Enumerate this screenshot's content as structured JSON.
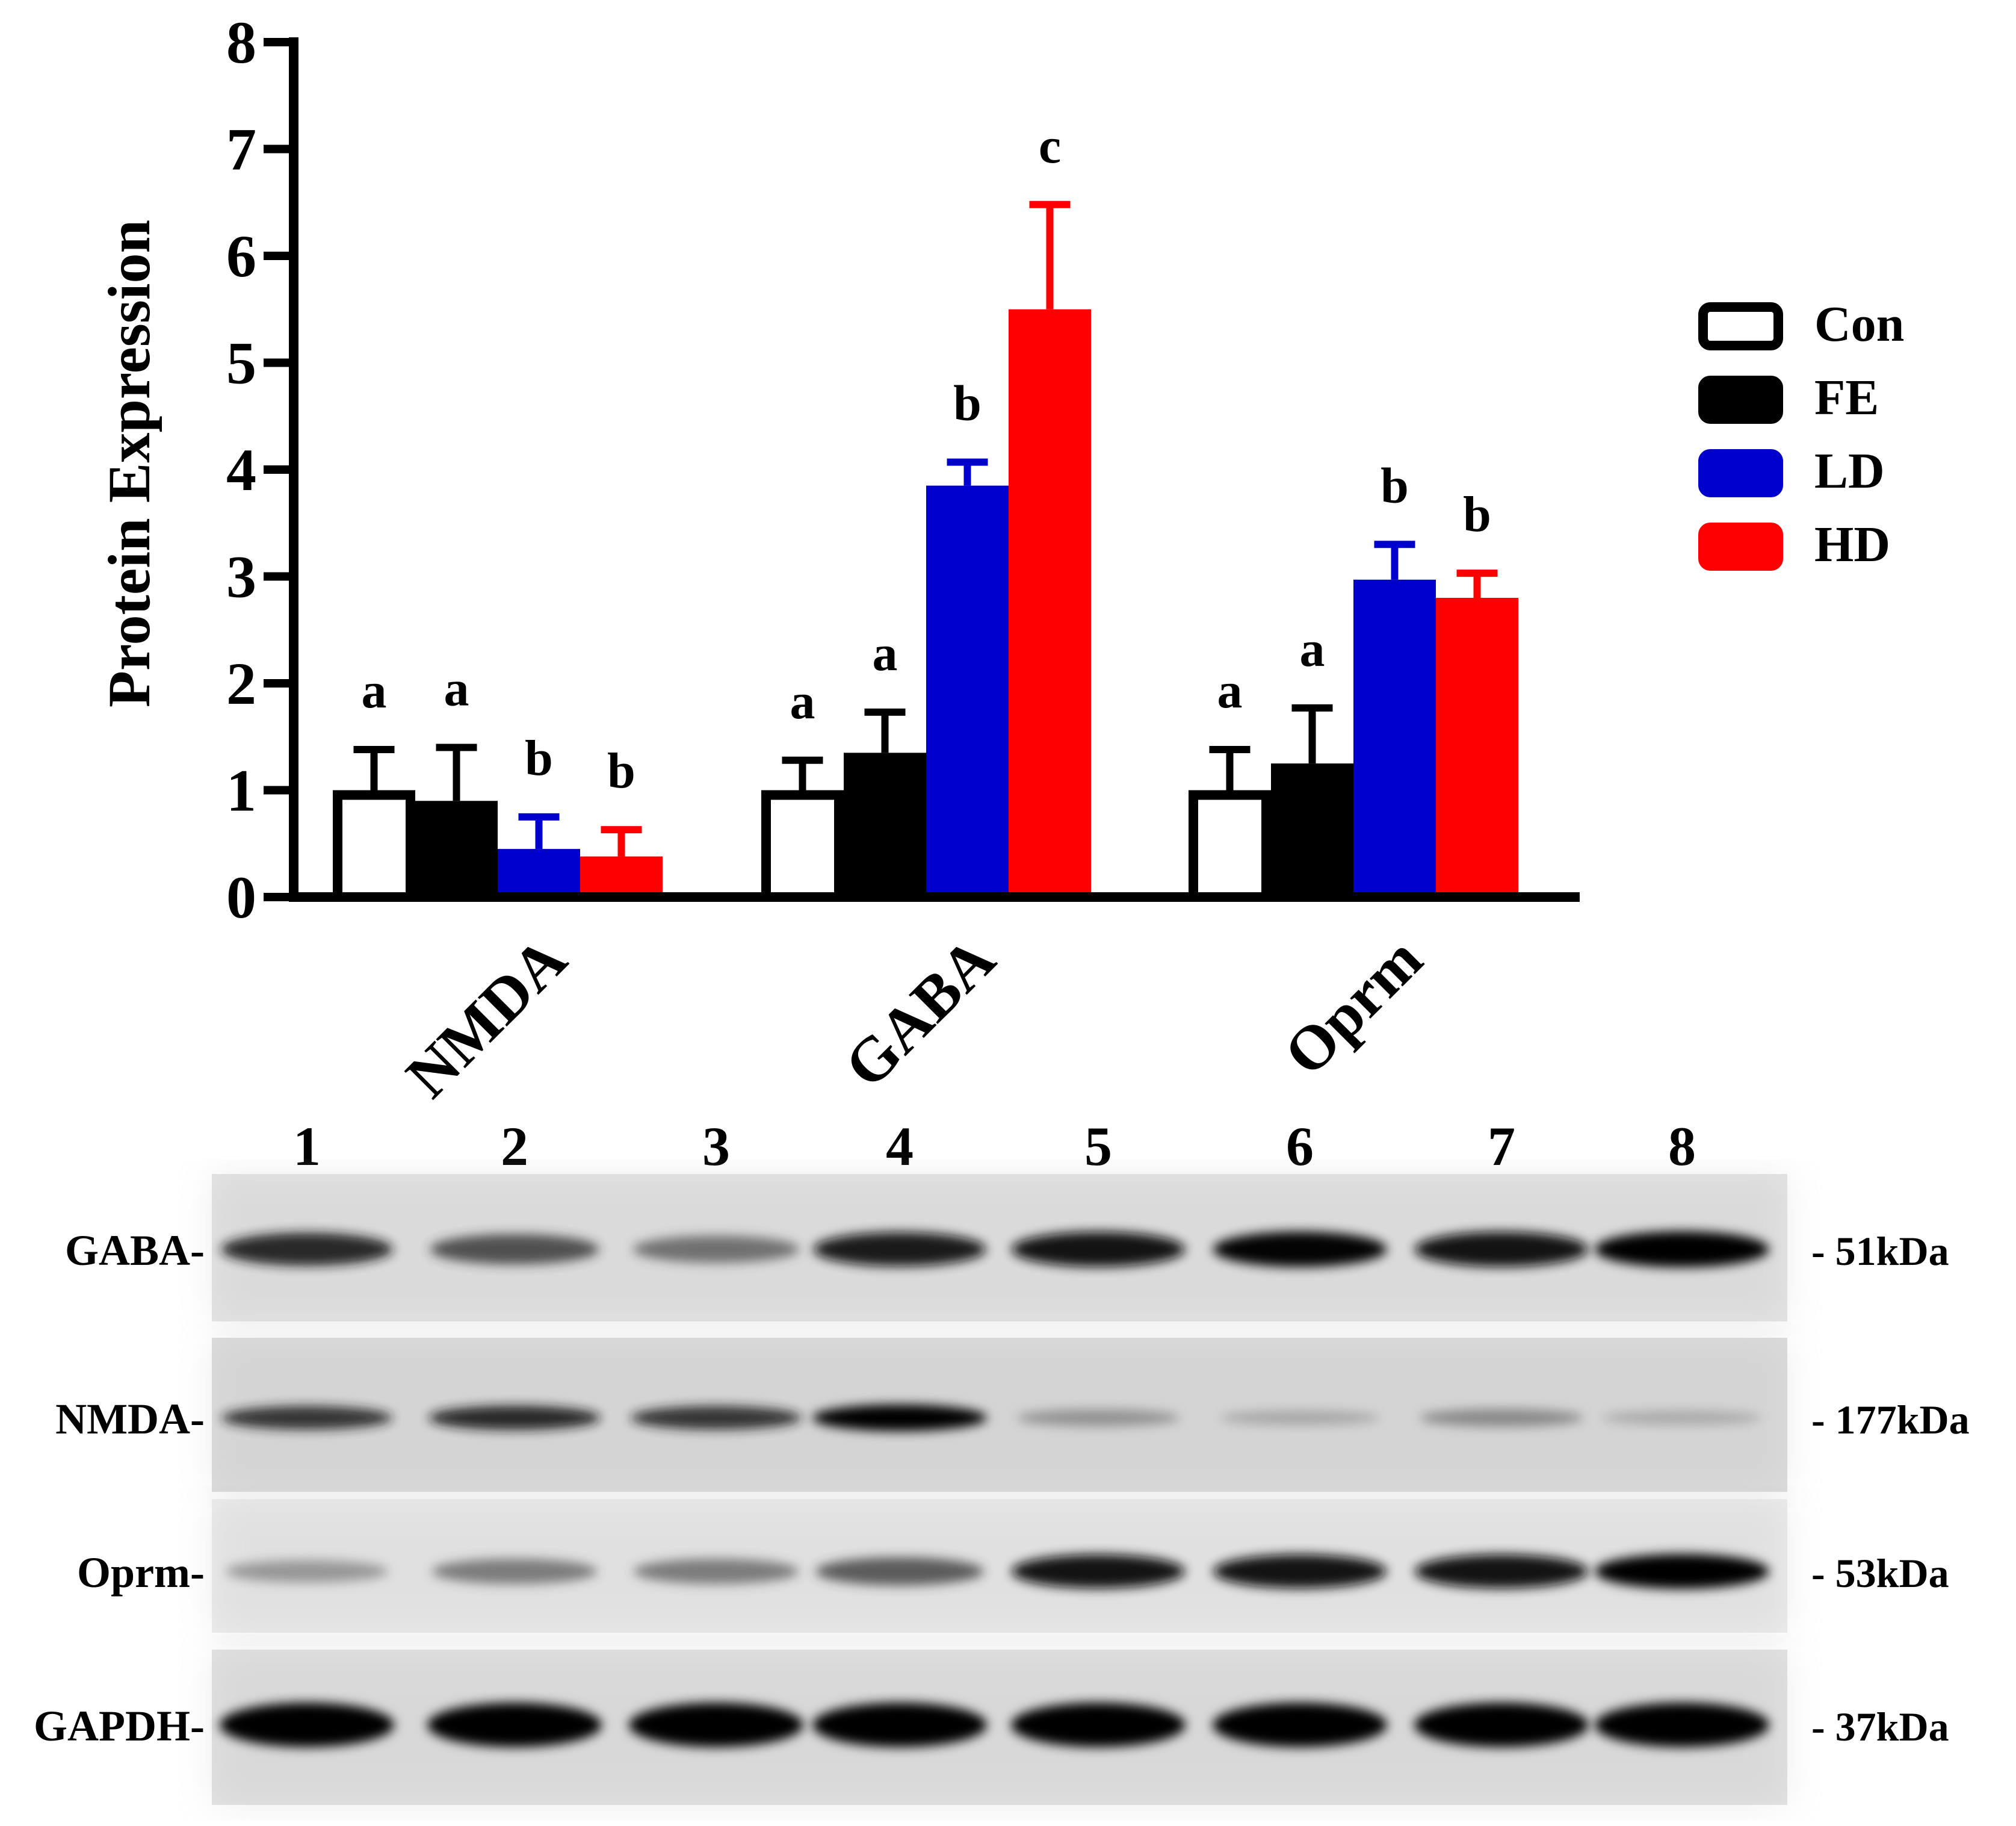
{
  "chart_data": {
    "type": "bar",
    "ylabel": "Protein Expression",
    "ylim": [
      0,
      8
    ],
    "yticks": [
      "0",
      "1",
      "2",
      "3",
      "4",
      "5",
      "6",
      "7",
      "8"
    ],
    "categories": [
      "NMDA",
      "GABA",
      "Oprm"
    ],
    "legend_position": "right",
    "series": [
      {
        "name": "Con",
        "color": "#ffffff",
        "values": [
          1.0,
          1.0,
          1.0
        ],
        "errors": [
          0.38,
          0.28,
          0.38
        ],
        "letters": [
          "a",
          "a",
          "a"
        ]
      },
      {
        "name": "FE",
        "color": "#000000",
        "values": [
          0.9,
          1.35,
          1.25
        ],
        "errors": [
          0.5,
          0.38,
          0.52
        ],
        "letters": [
          "a",
          "a",
          "a"
        ]
      },
      {
        "name": "LD",
        "color": "#0000cc",
        "values": [
          0.45,
          3.85,
          2.97
        ],
        "errors": [
          0.3,
          0.22,
          0.33
        ],
        "letters": [
          "b",
          "b",
          "b"
        ]
      },
      {
        "name": "HD",
        "color": "#ff0000",
        "values": [
          0.38,
          5.5,
          2.8
        ],
        "errors": [
          0.25,
          0.98,
          0.23
        ],
        "letters": [
          "b",
          "c",
          "b"
        ]
      }
    ]
  },
  "blot": {
    "lanes": [
      "1",
      "2",
      "3",
      "4",
      "5",
      "6",
      "7",
      "8"
    ],
    "rows": [
      {
        "label": "GABA-",
        "size": "- 51kDa",
        "intensity": [
          0.85,
          0.7,
          0.55,
          0.9,
          0.95,
          0.97,
          0.95,
          1.0
        ]
      },
      {
        "label": "NMDA-",
        "size": "- 177kDa",
        "intensity": [
          0.8,
          0.85,
          0.8,
          1.0,
          0.35,
          0.2,
          0.4,
          0.18
        ]
      },
      {
        "label": "Oprm-",
        "size": "- 53kDa",
        "intensity": [
          0.35,
          0.5,
          0.5,
          0.65,
          0.95,
          0.95,
          0.95,
          1.0
        ]
      },
      {
        "label": "GAPDH-",
        "size": "- 37kDa",
        "intensity": [
          1.0,
          1.0,
          1.0,
          1.0,
          1.0,
          1.0,
          1.0,
          1.0
        ]
      }
    ]
  }
}
